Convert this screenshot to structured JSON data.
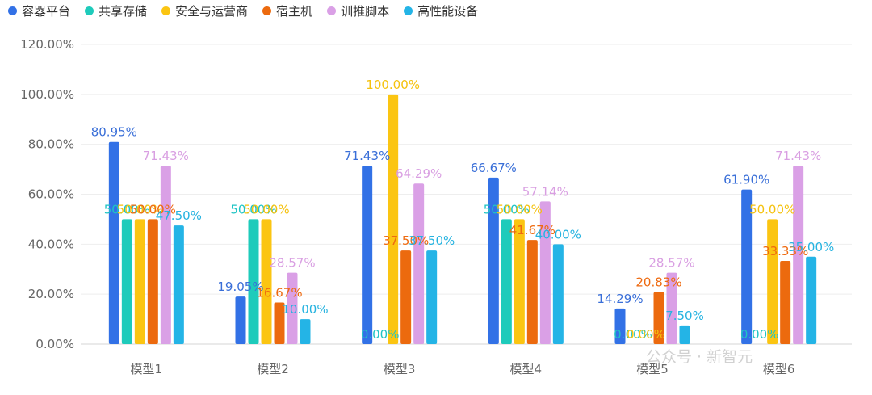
{
  "chart_data": {
    "type": "bar",
    "categories": [
      "模型1",
      "模型2",
      "模型3",
      "模型4",
      "模型5",
      "模型6"
    ],
    "series": [
      {
        "name": "容器平台",
        "color": "#3271e6",
        "labelColor": "#3a6fd8",
        "values": [
          80.95,
          19.05,
          71.43,
          66.67,
          14.29,
          61.9
        ],
        "labels": [
          "80.95%",
          "19.05%",
          "71.43%",
          "66.67%",
          "14.29%",
          "61.90%"
        ]
      },
      {
        "name": "共享存储",
        "color": "#1ecbbb",
        "labelColor": "#1fc4c4",
        "values": [
          50.0,
          50.0,
          0.0,
          50.0,
          0.0,
          0.0
        ],
        "labels": [
          "50.00%",
          "50.00%",
          "0.00%",
          "50.00%",
          "0.00%",
          "0.00%"
        ]
      },
      {
        "name": "安全与运营商",
        "color": "#fbc512",
        "labelColor": "#f5c20e",
        "values": [
          50.0,
          50.0,
          100.0,
          50.0,
          0.0,
          50.0
        ],
        "labels": [
          "50.00%",
          "50.00%",
          "100.00%",
          "50.00%",
          "0.00%",
          "50.00%"
        ]
      },
      {
        "name": "宿主机",
        "color": "#ec6a0e",
        "labelColor": "#ee6a10",
        "values": [
          50.0,
          16.67,
          37.5,
          41.67,
          20.83,
          33.33
        ],
        "labels": [
          "50.00%",
          "16.67%",
          "37.50%",
          "41.67%",
          "20.83%",
          "33.33%"
        ]
      },
      {
        "name": "训推脚本",
        "color": "#daa0e6",
        "labelColor": "#d99fe2",
        "values": [
          71.43,
          28.57,
          64.29,
          57.14,
          28.57,
          71.43
        ],
        "labels": [
          "71.43%",
          "28.57%",
          "64.29%",
          "57.14%",
          "28.57%",
          "71.43%"
        ]
      },
      {
        "name": "高性能设备",
        "color": "#24b4e6",
        "labelColor": "#26b3e0",
        "values": [
          47.5,
          10.0,
          37.5,
          40.0,
          7.5,
          35.0
        ],
        "labels": [
          "47.50%",
          "10.00%",
          "37.50%",
          "40.00%",
          "7.50%",
          "35.00%"
        ]
      }
    ],
    "yticks": [
      "0.00%",
      "20.00%",
      "40.00%",
      "60.00%",
      "80.00%",
      "100.00%",
      "120.00%"
    ],
    "ylim": [
      0,
      120
    ],
    "grid": true,
    "legend": "top-left"
  },
  "watermark": "公众号 · 新智元"
}
